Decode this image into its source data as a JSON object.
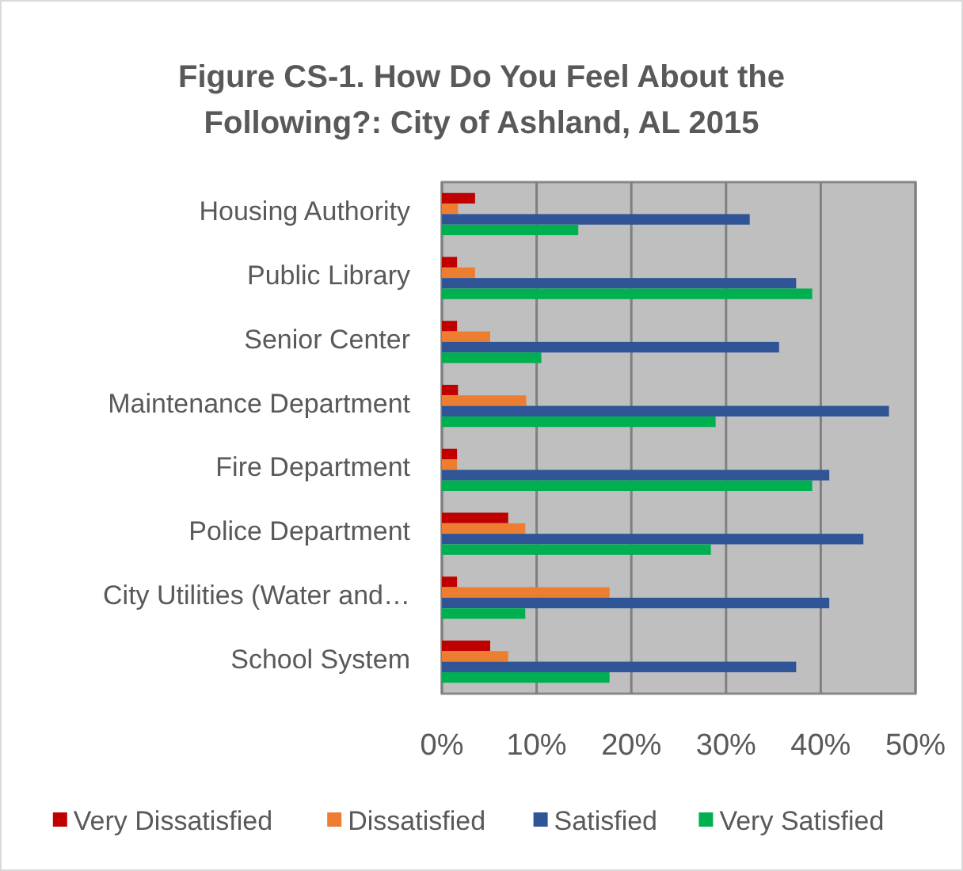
{
  "chart_data": {
    "type": "bar",
    "orientation": "horizontal",
    "title": "Figure CS-1. How Do You Feel About the Following?: City of Ashland, AL 2015",
    "categories": [
      "Housing Authority",
      "Public Library",
      "Senior Center",
      "Maintenance Department",
      "Fire Department",
      "Police Department",
      "City Utilities (Water and…",
      "School System"
    ],
    "series": [
      {
        "name": "Very Dissatisfied",
        "color": "#c00000",
        "values": [
          3.5,
          1.6,
          1.6,
          1.7,
          1.6,
          7.0,
          1.6,
          5.1
        ]
      },
      {
        "name": "Dissatisfied",
        "color": "#ed7d31",
        "values": [
          1.7,
          3.5,
          5.1,
          8.9,
          1.6,
          8.8,
          17.7,
          7.0
        ]
      },
      {
        "name": "Satisfied",
        "color": "#2f5597",
        "values": [
          32.5,
          37.4,
          35.6,
          47.2,
          40.9,
          44.5,
          40.9,
          37.4
        ]
      },
      {
        "name": "Very Satisfied",
        "color": "#00b050",
        "values": [
          14.4,
          39.1,
          10.5,
          28.9,
          39.1,
          28.4,
          8.8,
          17.7
        ]
      }
    ],
    "xlim": [
      0,
      50
    ],
    "xticks": [
      {
        "value": 0,
        "label": "0%"
      },
      {
        "value": 10,
        "label": "10%"
      },
      {
        "value": 20,
        "label": "20%"
      },
      {
        "value": 30,
        "label": "30%"
      },
      {
        "value": 40,
        "label": "40%"
      },
      {
        "value": 50,
        "label": "50%"
      }
    ],
    "grid": "x",
    "legend": "bottom"
  }
}
